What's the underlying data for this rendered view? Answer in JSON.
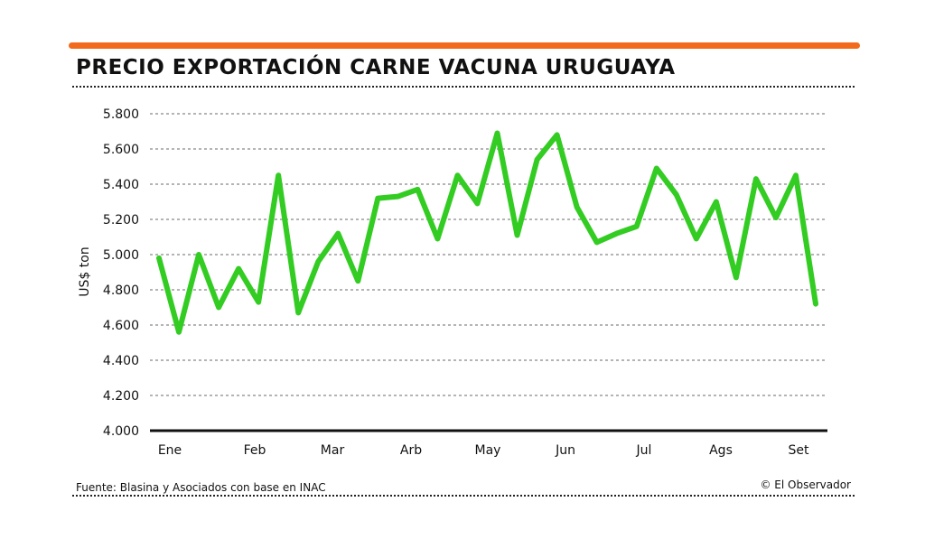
{
  "title": "PRECIO EXPORTACIÓN CARNE VACUNA URUGUAYA",
  "source": "Fuente: Blasina y Asociados con base en INAC",
  "credit": "© El Observador",
  "colors": {
    "accent": "#f26a1b",
    "line": "#33cc22"
  },
  "chart_data": {
    "type": "line",
    "title": "PRECIO EXPORTACIÓN CARNE VACUNA URUGUAYA",
    "ylabel": "US$ ton",
    "xlabel": "",
    "ylim": [
      4000,
      5800
    ],
    "yticks": [
      4000,
      4200,
      4400,
      4600,
      4800,
      5000,
      5200,
      5400,
      5600,
      5800
    ],
    "ytick_labels": [
      "4.000",
      "4.200",
      "4.400",
      "4.600",
      "4.800",
      "5.000",
      "5.200",
      "5.400",
      "5.600",
      "5.800"
    ],
    "x_labels": [
      "Ene",
      "Feb",
      "Mar",
      "Arb",
      "May",
      "Jun",
      "Jul",
      "Ags",
      "Set"
    ],
    "grid": true,
    "series": [
      {
        "name": "Precio",
        "values": [
          4980,
          4560,
          5000,
          4700,
          4920,
          4730,
          5450,
          4670,
          4960,
          5120,
          4850,
          5320,
          5330,
          5370,
          5090,
          5450,
          5290,
          5690,
          5110,
          5540,
          5680,
          5270,
          5070,
          5120,
          5160,
          5490,
          5340,
          5090,
          5300,
          4870,
          5430,
          5210,
          5450,
          4720
        ]
      }
    ]
  }
}
